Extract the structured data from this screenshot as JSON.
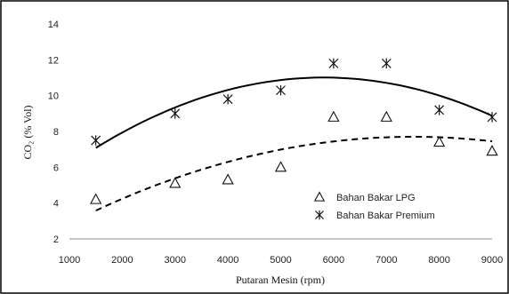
{
  "chart_data": {
    "type": "scatter",
    "title": "",
    "xlabel": "Putaran Mesin (rpm)",
    "ylabel": "CO₂ (% Vol)",
    "xlim": [
      1000,
      9000
    ],
    "ylim": [
      2,
      14
    ],
    "x_ticks": [
      "1000",
      "2000",
      "3000",
      "4000",
      "5000",
      "6000",
      "7000",
      "8000",
      "9000"
    ],
    "y_ticks": [
      "2",
      "4",
      "6",
      "8",
      "10",
      "12",
      "14"
    ],
    "grid": false,
    "legend_position": "bottom-right",
    "series": [
      {
        "name": "Bahan Bakar LPG",
        "marker": "triangle",
        "trendline": "dashed",
        "x": [
          1500,
          3000,
          4000,
          5000,
          6000,
          7000,
          8000,
          9000
        ],
        "y": [
          4.2,
          5.1,
          5.3,
          6.0,
          8.8,
          8.8,
          7.4,
          6.9
        ]
      },
      {
        "name": "Bahan Bakar Premium",
        "marker": "asterisk",
        "trendline": "solid",
        "x": [
          1500,
          3000,
          4000,
          5000,
          6000,
          7000,
          8000,
          9000
        ],
        "y": [
          7.5,
          9.0,
          9.8,
          10.3,
          11.8,
          11.8,
          9.2,
          8.8
        ]
      }
    ]
  }
}
